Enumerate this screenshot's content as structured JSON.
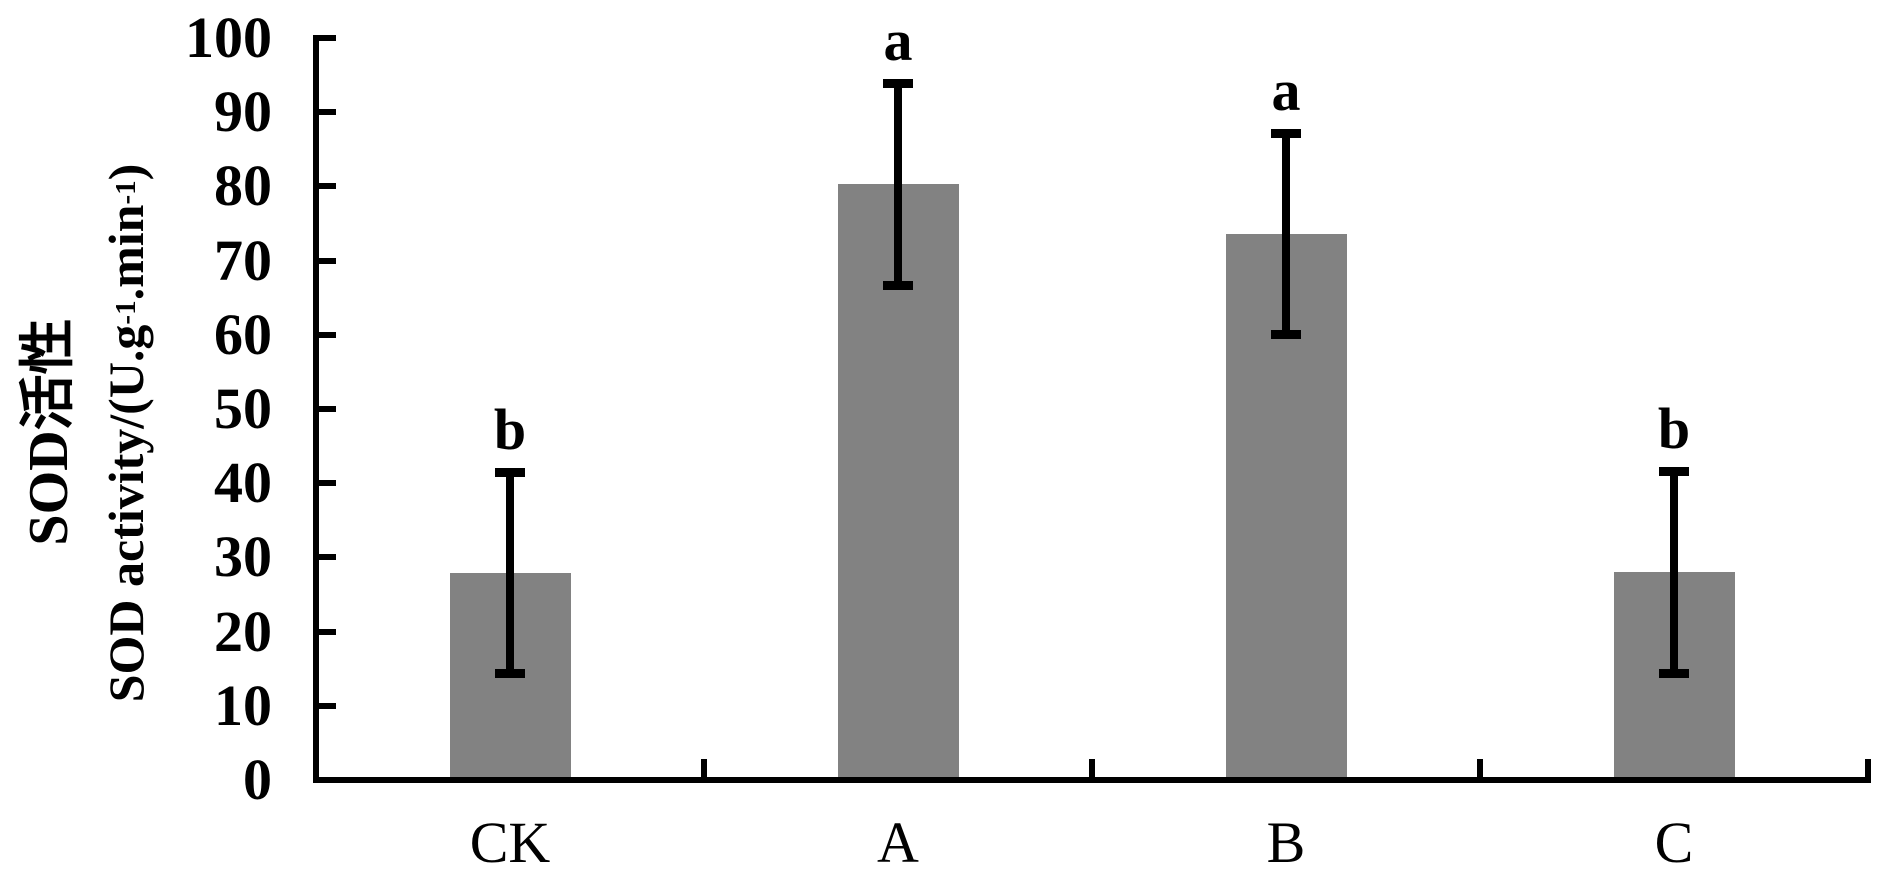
{
  "chart_data": {
    "type": "bar",
    "title": "",
    "categories": [
      "CK",
      "A",
      "B",
      "C"
    ],
    "values": [
      27.9,
      80.3,
      73.6,
      28.0
    ],
    "errors": [
      14.2,
      14.2,
      14.2,
      14.2
    ],
    "sig_letters": [
      "b",
      "a",
      "a",
      "b"
    ],
    "ylabel_cn": "SOD活性",
    "ylabel_en_parts": [
      {
        "type": "text",
        "value": "SOD activity/(U.g"
      },
      {
        "type": "sup",
        "value": "-1"
      },
      {
        "type": "text",
        "value": ".min"
      },
      {
        "type": "sup",
        "value": "-1"
      },
      {
        "type": "text",
        "value": ")"
      }
    ],
    "xlabel": "",
    "ylim": [
      0,
      100
    ],
    "yticks": [
      0,
      10,
      20,
      30,
      40,
      50,
      60,
      70,
      80,
      90,
      100
    ],
    "grid": "off",
    "legend": "none",
    "bar_color": "#828282",
    "axis_color": "#000000",
    "background_color": "#ffffff"
  }
}
